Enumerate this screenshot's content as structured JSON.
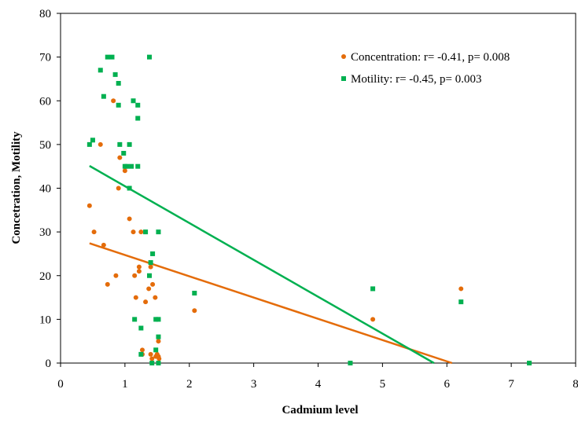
{
  "chart_data": {
    "type": "scatter",
    "xlabel": "Cadmium level",
    "ylabel": "Concetration, Motility",
    "xlim": [
      0,
      8
    ],
    "ylim": [
      0,
      80
    ],
    "xticks": [
      "0",
      "1",
      "2",
      "3",
      "4",
      "5",
      "6",
      "7",
      "8"
    ],
    "yticks": [
      "0",
      "10",
      "20",
      "30",
      "40",
      "50",
      "60",
      "70",
      "80"
    ],
    "grid": false,
    "legend_position": "top-right",
    "series": [
      {
        "name": "Concentration: r= -0.41,  p= 0.008",
        "color": "#e46c0a",
        "marker": "circle",
        "points": [
          [
            0.45,
            36
          ],
          [
            0.52,
            30
          ],
          [
            0.62,
            50
          ],
          [
            0.67,
            27
          ],
          [
            0.73,
            18
          ],
          [
            0.82,
            60
          ],
          [
            0.86,
            20
          ],
          [
            0.9,
            40
          ],
          [
            0.92,
            47
          ],
          [
            1.0,
            44
          ],
          [
            1.07,
            33
          ],
          [
            1.13,
            30
          ],
          [
            1.15,
            20
          ],
          [
            1.17,
            15
          ],
          [
            1.22,
            22
          ],
          [
            1.22,
            21
          ],
          [
            1.25,
            30
          ],
          [
            1.27,
            3
          ],
          [
            1.27,
            2
          ],
          [
            1.32,
            14
          ],
          [
            1.37,
            17
          ],
          [
            1.4,
            22
          ],
          [
            1.4,
            2
          ],
          [
            1.42,
            1
          ],
          [
            1.43,
            18
          ],
          [
            1.47,
            15
          ],
          [
            1.48,
            1.5
          ],
          [
            1.5,
            2
          ],
          [
            1.52,
            1.5
          ],
          [
            1.52,
            5
          ],
          [
            1.53,
            1
          ],
          [
            2.08,
            12
          ],
          [
            4.85,
            10
          ],
          [
            6.22,
            17
          ]
        ],
        "trend": [
          [
            0.45,
            27.4
          ],
          [
            6.08,
            0
          ]
        ]
      },
      {
        "name": "Motility: r= -0.45,  p= 0.003",
        "color": "#00b050",
        "marker": "square",
        "points": [
          [
            0.45,
            50
          ],
          [
            0.5,
            51
          ],
          [
            0.62,
            67
          ],
          [
            0.67,
            61
          ],
          [
            0.73,
            70
          ],
          [
            0.8,
            70
          ],
          [
            0.85,
            66
          ],
          [
            0.9,
            59
          ],
          [
            0.9,
            64
          ],
          [
            0.92,
            50
          ],
          [
            0.98,
            48
          ],
          [
            1.0,
            45
          ],
          [
            1.03,
            45
          ],
          [
            1.07,
            50
          ],
          [
            1.07,
            40
          ],
          [
            1.1,
            45
          ],
          [
            1.13,
            60
          ],
          [
            1.15,
            10
          ],
          [
            1.2,
            59
          ],
          [
            1.2,
            56
          ],
          [
            1.2,
            45
          ],
          [
            1.25,
            8
          ],
          [
            1.25,
            2
          ],
          [
            1.32,
            30
          ],
          [
            1.38,
            70
          ],
          [
            1.38,
            20
          ],
          [
            1.4,
            23
          ],
          [
            1.42,
            0
          ],
          [
            1.43,
            25
          ],
          [
            1.48,
            10
          ],
          [
            1.48,
            3
          ],
          [
            1.52,
            30
          ],
          [
            1.52,
            10
          ],
          [
            1.52,
            6
          ],
          [
            1.52,
            0
          ],
          [
            2.08,
            16
          ],
          [
            4.5,
            0
          ],
          [
            4.85,
            17
          ],
          [
            6.22,
            14
          ],
          [
            7.28,
            0
          ]
        ],
        "trend": [
          [
            0.45,
            45.1
          ],
          [
            5.8,
            0
          ]
        ]
      }
    ]
  }
}
